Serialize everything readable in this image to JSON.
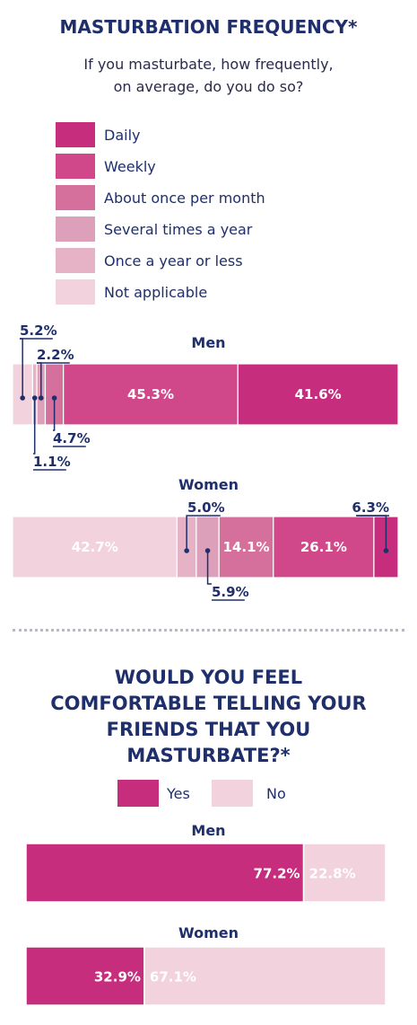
{
  "chart_data": [
    {
      "type": "bar",
      "stacked": true,
      "orientation": "horizontal",
      "title": "MASTURBATION FREQUENCY*",
      "subtitle_lines": [
        "If you masturbate, how frequently,",
        "on average, do you do so?"
      ],
      "categories": [
        "Men",
        "Women"
      ],
      "series": [
        {
          "name": "Not applicable",
          "color": "#f2d2dc",
          "values": [
            5.2,
            42.7
          ]
        },
        {
          "name": "Once a year or less",
          "color": "#e6b2c6",
          "values": [
            1.1,
            5.0
          ]
        },
        {
          "name": "Several times a year",
          "color": "#dca0ba",
          "values": [
            2.2,
            5.9
          ]
        },
        {
          "name": "About once per month",
          "color": "#d56f9b",
          "values": [
            4.7,
            14.1
          ]
        },
        {
          "name": "Weekly",
          "color": "#d0478a",
          "values": [
            45.3,
            26.1
          ]
        },
        {
          "name": "Daily",
          "color": "#c62d7c",
          "values": [
            41.6,
            6.3
          ]
        }
      ],
      "legend_order": [
        "Daily",
        "Weekly",
        "About once per month",
        "Several times a year",
        "Once a year or less",
        "Not applicable"
      ],
      "legend_placement": "top",
      "value_labels": {
        "Men": [
          "5.2%",
          "1.1%",
          "2.2%",
          "4.7%",
          "45.3%",
          "41.6%"
        ],
        "Women": [
          "42.7%",
          "5.0%",
          "5.9%",
          "14.1%",
          "26.1%",
          "6.3%"
        ]
      },
      "grid": false
    },
    {
      "type": "bar",
      "stacked": true,
      "orientation": "horizontal",
      "title_lines": [
        "WOULD YOU FEEL",
        "COMFORTABLE TELLING YOUR",
        "FRIENDS THAT YOU",
        "MASTURBATE?*"
      ],
      "categories": [
        "Men",
        "Women"
      ],
      "series": [
        {
          "name": "Yes",
          "color": "#c62d7c",
          "values": [
            77.2,
            32.9
          ]
        },
        {
          "name": "No",
          "color": "#f2d2dc",
          "values": [
            22.8,
            67.1
          ]
        }
      ],
      "legend_placement": "top",
      "value_labels": {
        "Men": [
          "77.2%",
          "22.8%"
        ],
        "Women": [
          "32.9%",
          "67.1%"
        ]
      },
      "grid": false
    }
  ]
}
